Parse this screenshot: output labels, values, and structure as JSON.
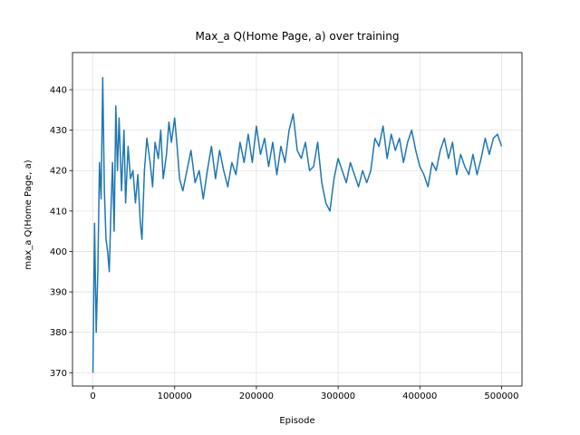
{
  "chart_data": {
    "type": "line",
    "title": "Max_a Q(Home Page, a) over training",
    "xlabel": "Episode",
    "ylabel": "max_a Q(Home Page, a)",
    "x": [
      0,
      2000,
      4000,
      6000,
      8000,
      10000,
      12000,
      14000,
      16000,
      18000,
      20000,
      22000,
      24000,
      26000,
      28000,
      30000,
      32000,
      35000,
      38000,
      40000,
      43000,
      46000,
      49000,
      52000,
      55000,
      58000,
      60000,
      63000,
      66000,
      70000,
      73000,
      76000,
      80000,
      83000,
      86000,
      90000,
      93000,
      96000,
      100000,
      103000,
      106000,
      110000,
      115000,
      120000,
      125000,
      130000,
      135000,
      140000,
      145000,
      150000,
      155000,
      160000,
      165000,
      170000,
      175000,
      180000,
      185000,
      190000,
      195000,
      200000,
      205000,
      210000,
      215000,
      220000,
      225000,
      230000,
      235000,
      240000,
      245000,
      250000,
      255000,
      260000,
      265000,
      270000,
      275000,
      280000,
      285000,
      290000,
      295000,
      300000,
      305000,
      310000,
      315000,
      320000,
      325000,
      330000,
      335000,
      340000,
      345000,
      350000,
      355000,
      360000,
      365000,
      370000,
      375000,
      380000,
      385000,
      390000,
      395000,
      400000,
      405000,
      410000,
      415000,
      420000,
      425000,
      430000,
      435000,
      440000,
      445000,
      450000,
      455000,
      460000,
      465000,
      470000,
      475000,
      480000,
      485000,
      490000,
      495000,
      500000
    ],
    "series": [
      {
        "name": "Max_a Q",
        "color": "#1f77b4",
        "values": [
          370,
          407,
          380,
          395,
          422,
          413,
          443,
          415,
          403,
          400,
          395,
          410,
          422,
          405,
          436,
          420,
          433,
          415,
          430,
          412,
          426,
          418,
          420,
          412,
          419,
          407,
          403,
          420,
          428,
          422,
          416,
          427,
          423,
          430,
          418,
          424,
          432,
          427,
          433,
          426,
          418,
          415,
          420,
          425,
          417,
          420,
          413,
          420,
          426,
          418,
          425,
          420,
          416,
          422,
          419,
          427,
          422,
          429,
          422,
          431,
          424,
          428,
          421,
          427,
          419,
          426,
          422,
          430,
          434,
          425,
          423,
          427,
          420,
          421,
          427,
          417,
          412,
          410,
          418,
          423,
          420,
          417,
          422,
          419,
          416,
          420,
          417,
          420,
          428,
          426,
          431,
          423,
          429,
          425,
          428,
          422,
          427,
          430,
          425,
          421,
          419,
          416,
          422,
          420,
          425,
          428,
          423,
          427,
          419,
          424,
          421,
          419,
          424,
          419,
          423,
          428,
          424,
          428,
          429,
          426
        ]
      }
    ],
    "xlim": [
      -25000,
      525000
    ],
    "ylim": [
      366.7,
      449.2
    ],
    "xticks": [
      0,
      100000,
      200000,
      300000,
      400000,
      500000
    ],
    "yticks": [
      370,
      380,
      390,
      400,
      410,
      420,
      430,
      440
    ],
    "grid": true
  }
}
